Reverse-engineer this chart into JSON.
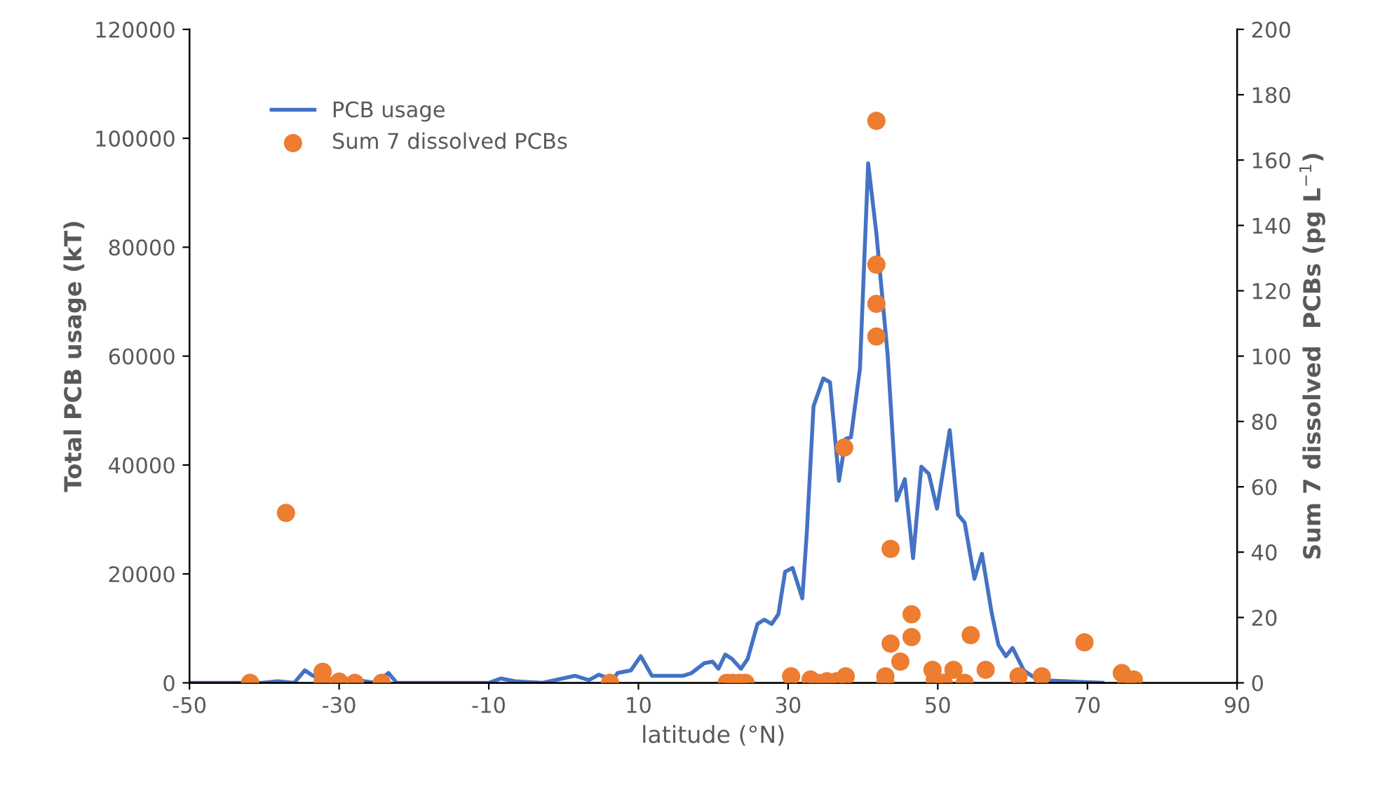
{
  "chart_data": {
    "type": "line",
    "xlabel": "latitude (°N)",
    "ylabel": "Total PCB usage (kT)",
    "y2label": "Sum 7 dissolved  PCBs (pg L$^{−1}$)",
    "xlim": [
      -50,
      90
    ],
    "xticks": [
      -50,
      -30,
      -10,
      10,
      30,
      50,
      70,
      90
    ],
    "ylim": [
      0,
      120000
    ],
    "yticks": [
      0,
      20000,
      40000,
      60000,
      80000,
      100000,
      120000
    ],
    "y2lim": [
      0,
      200
    ],
    "y2ticks": [
      0,
      20,
      40,
      60,
      80,
      100,
      120,
      140,
      160,
      180,
      200
    ],
    "grid": false,
    "legend": "top left",
    "series": [
      {
        "name": "PCB usage",
        "color": "#4472c4",
        "marker": "none",
        "line_style": "solid",
        "x": [
          -50,
          -40.3,
          -38.2,
          -36,
          -34.6,
          -33.5,
          -30.9,
          -28.4,
          -26.6,
          -25.1,
          -23.4,
          -22.3,
          -10,
          -8.4,
          -6.5,
          -2.8,
          1.5,
          3.4,
          4.7,
          6.6,
          7.2,
          9.0,
          10.3,
          11.8,
          16.0,
          17.1,
          18.8,
          19.9,
          20.7,
          21.6,
          22.5,
          23.7,
          24.6,
          25.9,
          26.8,
          27.8,
          28.7,
          29.6,
          30.6,
          31.9,
          32.5,
          33.4,
          34.7,
          35.6,
          36.8,
          37.7,
          38.4,
          39.6,
          40.7,
          41.8,
          43.3,
          44.5,
          45.6,
          46.7,
          47.8,
          48.8,
          49.9,
          51.6,
          52.7,
          53.6,
          54.9,
          55.9,
          57.2,
          58.1,
          59.1,
          60.0,
          61.5,
          63.4,
          72
        ],
        "values": [
          0,
          0,
          300,
          0,
          2300,
          1300,
          0,
          800,
          300,
          0,
          1800,
          0,
          0,
          800,
          300,
          0,
          1300,
          500,
          1500,
          500,
          1800,
          2300,
          4900,
          1300,
          1300,
          1800,
          3600,
          3900,
          2600,
          5200,
          4400,
          2600,
          4400,
          10800,
          11600,
          10800,
          12600,
          20400,
          21100,
          15500,
          27600,
          50800,
          55900,
          55200,
          37100,
          44800,
          45100,
          57700,
          95400,
          82500,
          60300,
          33500,
          37400,
          22900,
          39700,
          38400,
          32000,
          46400,
          30900,
          29400,
          19100,
          23700,
          12900,
          7000,
          4900,
          6400,
          2300,
          500,
          0
        ]
      },
      {
        "name": "Sum 7 dissolved PCBs",
        "type": "scatter",
        "axis": "y2",
        "color": "#ed7d31",
        "marker": "circle",
        "x": [
          -41.9,
          -37.1,
          -32.2,
          -32.2,
          -30,
          -27.9,
          -24.3,
          6.2,
          21.8,
          22.6,
          23.5,
          24.3,
          30.4,
          33.0,
          34.0,
          35.2,
          36.5,
          37.5,
          37.7,
          41.8,
          41.8,
          41.8,
          41.8,
          43.0,
          43.0,
          43.7,
          43.7,
          45.0,
          46.5,
          46.5,
          49.3,
          49.6,
          50.8,
          52.1,
          53.6,
          54.4,
          56.4,
          60.8,
          63.9,
          69.6,
          74.6,
          75.2,
          76.2
        ],
        "values": [
          0,
          52,
          3.4,
          0.4,
          0.4,
          0,
          0,
          0,
          0,
          0,
          0,
          0,
          2,
          1,
          0,
          0.5,
          0.5,
          72,
          2,
          172,
          128,
          116,
          106,
          2,
          0,
          41,
          12,
          6.5,
          21,
          14,
          4,
          1,
          0,
          4,
          0,
          14.6,
          4,
          2,
          2,
          12.4,
          3,
          0,
          1
        ]
      }
    ]
  }
}
